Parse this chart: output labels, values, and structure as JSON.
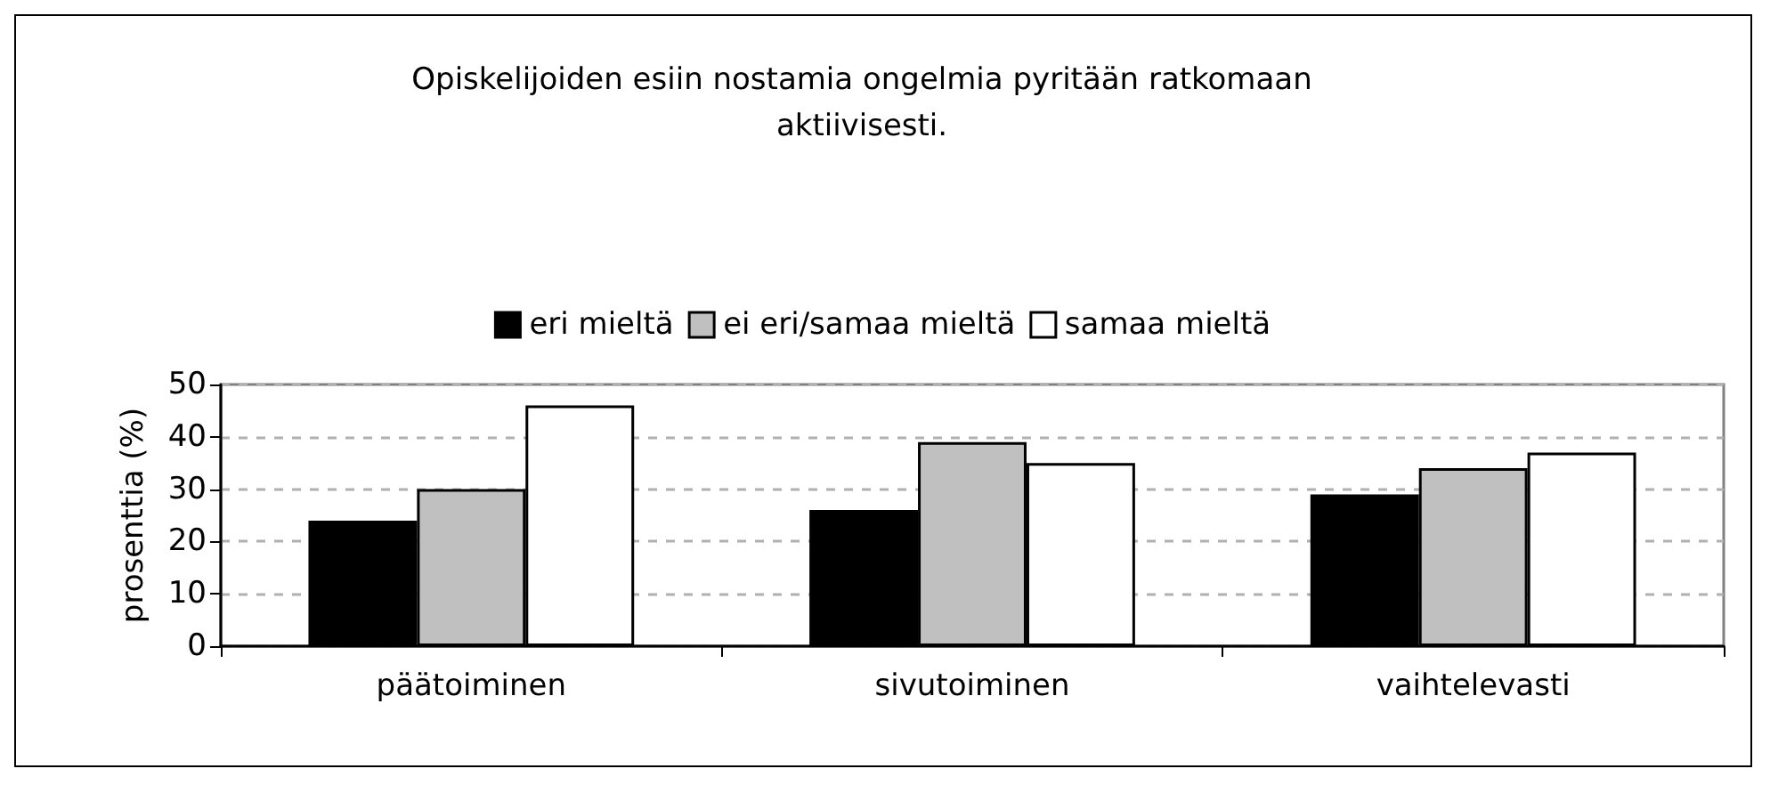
{
  "chart_data": {
    "type": "bar",
    "title": "Opiskelijoiden esiin nostamia ongelmia pyritään ratkomaan\naktiivisesti.",
    "ylabel": "prosenttia (%)",
    "categories": [
      "päätoiminen",
      "sivutoiminen",
      "vaihtelevasti"
    ],
    "series": [
      {
        "name": "eri mieltä",
        "color": "#000000",
        "values": [
          24,
          26,
          29
        ]
      },
      {
        "name": "ei eri/samaa mieltä",
        "color": "#c0c0c0",
        "values": [
          30,
          39,
          34
        ]
      },
      {
        "name": "samaa mieltä",
        "color": "#ffffff",
        "values": [
          46,
          35,
          37
        ]
      }
    ],
    "ylim": [
      0,
      50
    ],
    "yticks": [
      0,
      10,
      20,
      30,
      40,
      50
    ],
    "grid": "y",
    "legend": "top"
  }
}
